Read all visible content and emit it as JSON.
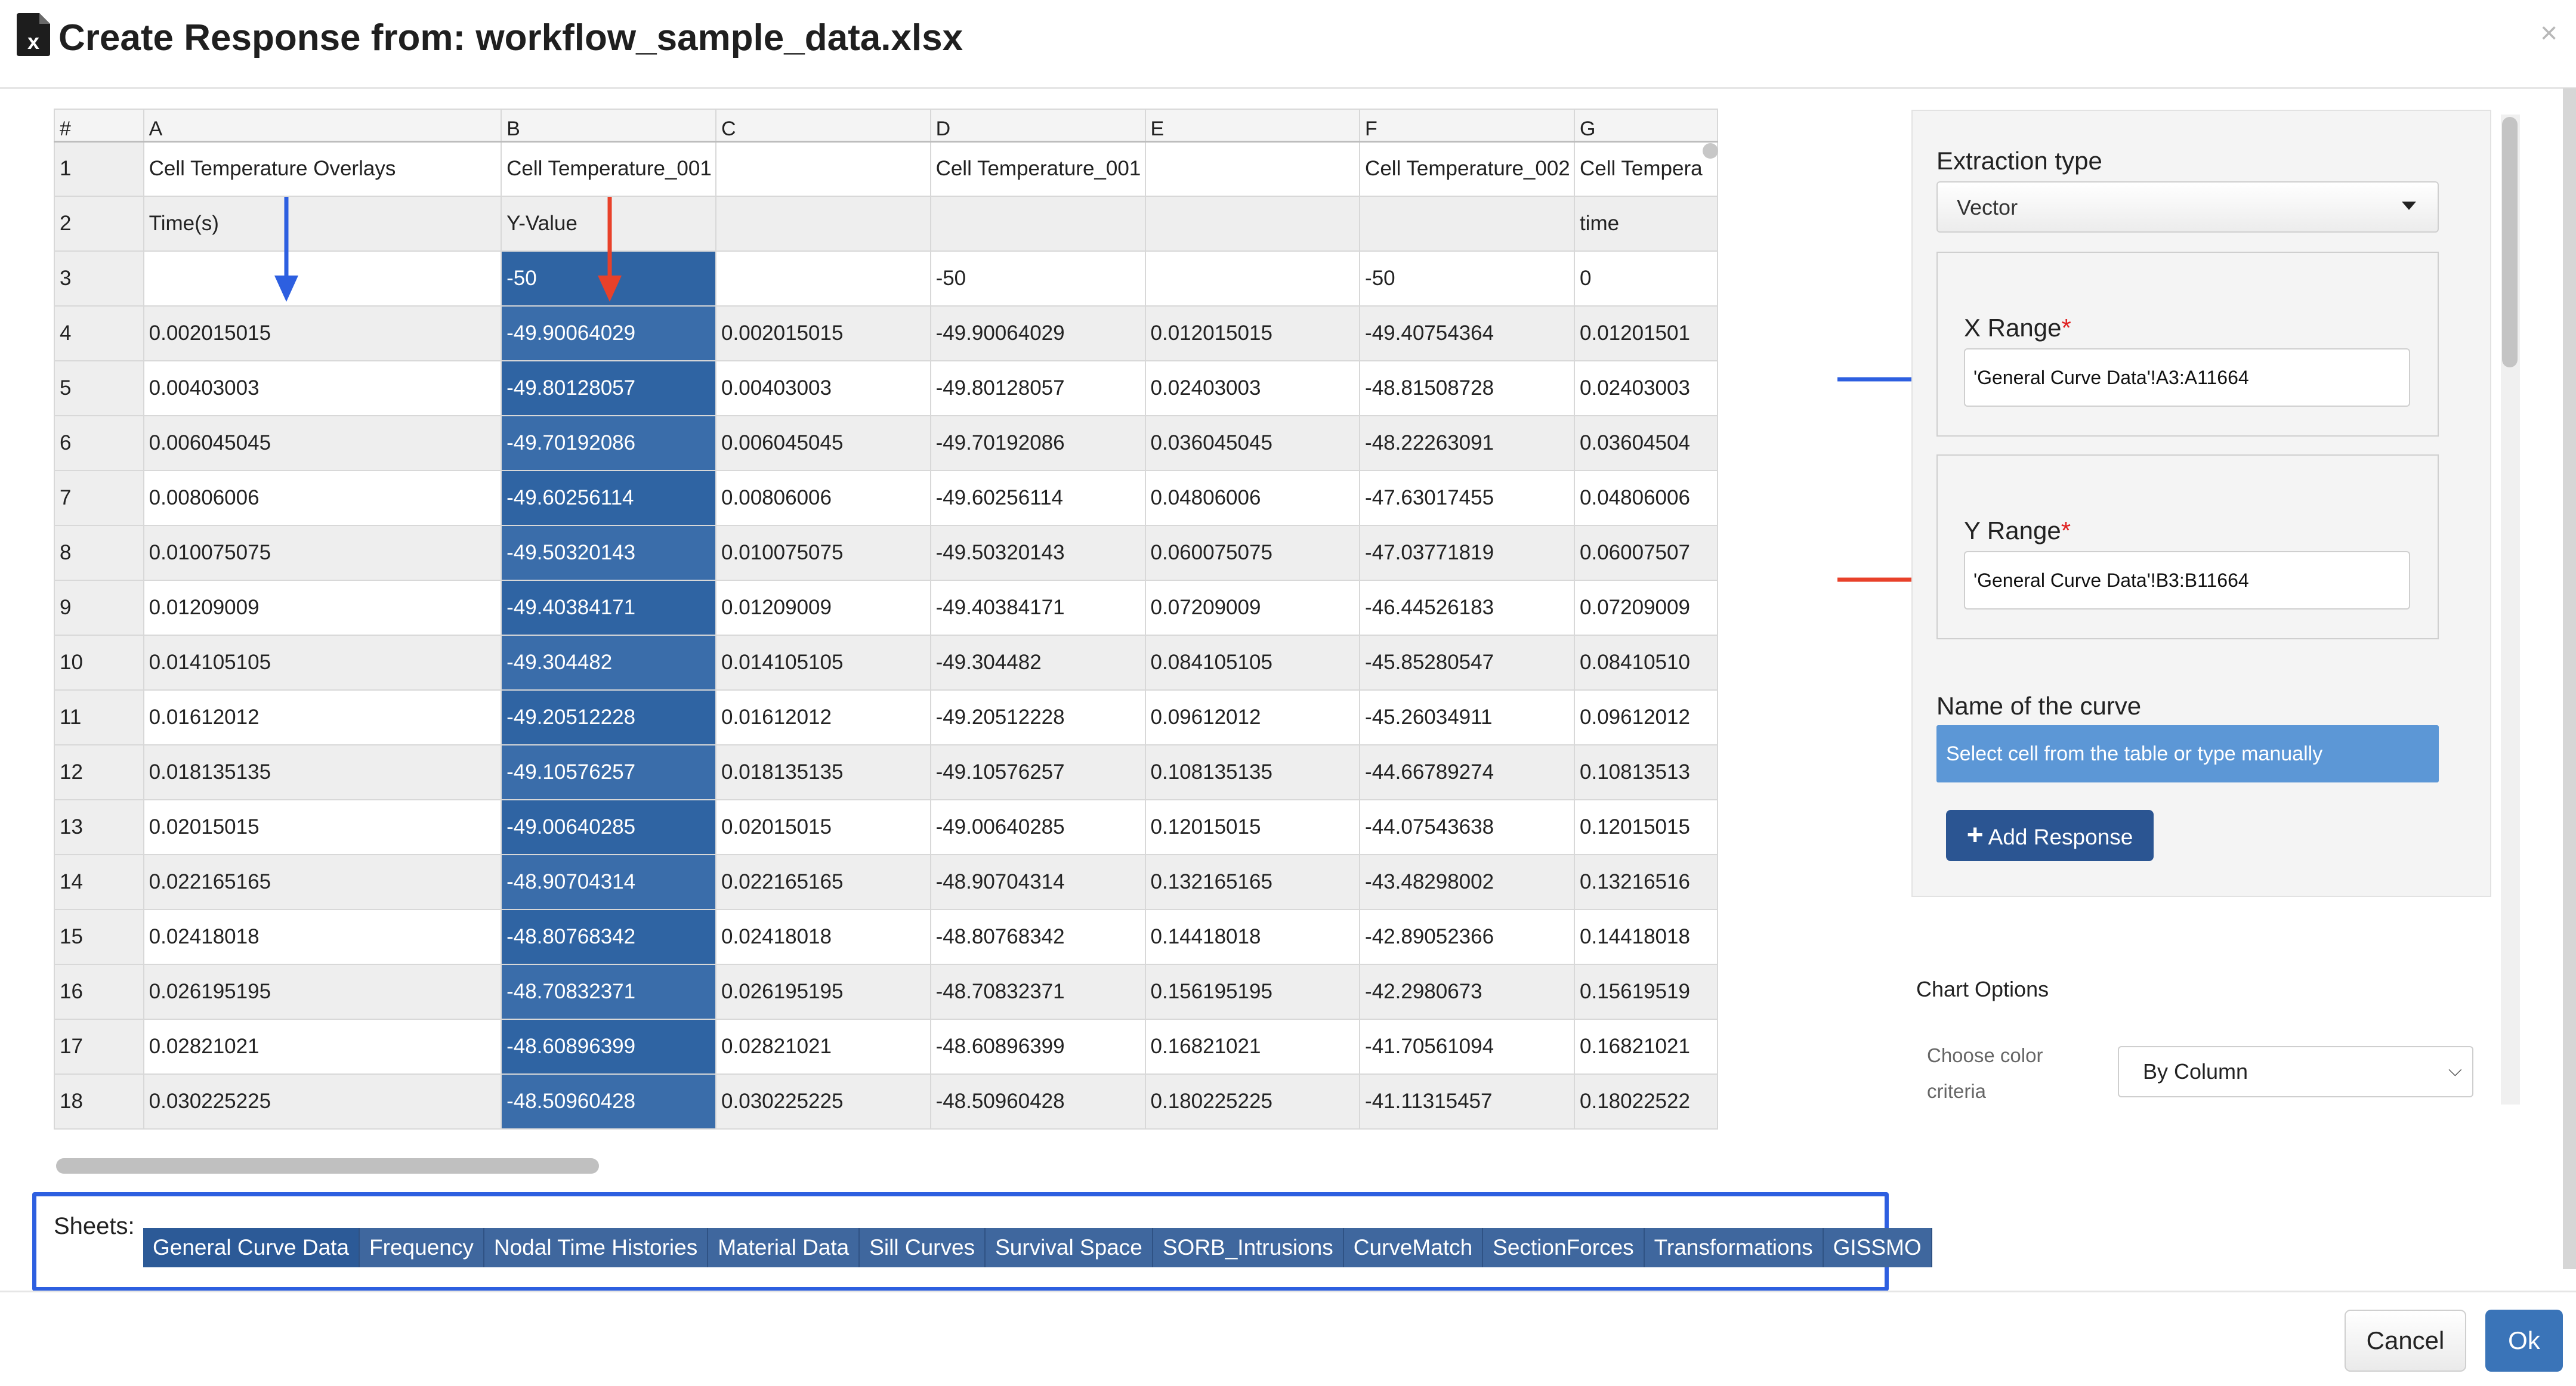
{
  "dialog": {
    "title": "Create Response from: workflow_sample_data.xlsx",
    "file_icon": "xlsx-file-icon",
    "close_icon": "close-icon",
    "close_glyph": "×"
  },
  "spreadsheet": {
    "columns": [
      "#",
      "A",
      "B",
      "C",
      "D",
      "E",
      "F",
      "G"
    ],
    "selected_column": "B",
    "rows": [
      [
        "1",
        "Cell Temperature Overlays",
        "Cell Temperature_001",
        "",
        "Cell Temperature_001",
        "",
        "Cell Temperature_002",
        "Cell Tempera"
      ],
      [
        "2",
        "Time(s)",
        "Y-Value",
        "",
        "",
        "",
        "",
        "time"
      ],
      [
        "3",
        "",
        "-50",
        "",
        "-50",
        "",
        "-50",
        "0"
      ],
      [
        "4",
        "0.002015015",
        "-49.90064029",
        "0.002015015",
        "-49.90064029",
        "0.012015015",
        "-49.40754364",
        "0.01201501"
      ],
      [
        "5",
        "0.00403003",
        "-49.80128057",
        "0.00403003",
        "-49.80128057",
        "0.02403003",
        "-48.81508728",
        "0.02403003"
      ],
      [
        "6",
        "0.006045045",
        "-49.70192086",
        "0.006045045",
        "-49.70192086",
        "0.036045045",
        "-48.22263091",
        "0.03604504"
      ],
      [
        "7",
        "0.00806006",
        "-49.60256114",
        "0.00806006",
        "-49.60256114",
        "0.04806006",
        "-47.63017455",
        "0.04806006"
      ],
      [
        "8",
        "0.010075075",
        "-49.50320143",
        "0.010075075",
        "-49.50320143",
        "0.060075075",
        "-47.03771819",
        "0.06007507"
      ],
      [
        "9",
        "0.01209009",
        "-49.40384171",
        "0.01209009",
        "-49.40384171",
        "0.07209009",
        "-46.44526183",
        "0.07209009"
      ],
      [
        "10",
        "0.014105105",
        "-49.304482",
        "0.014105105",
        "-49.304482",
        "0.084105105",
        "-45.85280547",
        "0.08410510"
      ],
      [
        "11",
        "0.01612012",
        "-49.20512228",
        "0.01612012",
        "-49.20512228",
        "0.09612012",
        "-45.26034911",
        "0.09612012"
      ],
      [
        "12",
        "0.018135135",
        "-49.10576257",
        "0.018135135",
        "-49.10576257",
        "0.108135135",
        "-44.66789274",
        "0.10813513"
      ],
      [
        "13",
        "0.02015015",
        "-49.00640285",
        "0.02015015",
        "-49.00640285",
        "0.12015015",
        "-44.07543638",
        "0.12015015"
      ],
      [
        "14",
        "0.022165165",
        "-48.90704314",
        "0.022165165",
        "-48.90704314",
        "0.132165165",
        "-43.48298002",
        "0.13216516"
      ],
      [
        "15",
        "0.02418018",
        "-48.80768342",
        "0.02418018",
        "-48.80768342",
        "0.14418018",
        "-42.89052366",
        "0.14418018"
      ],
      [
        "16",
        "0.026195195",
        "-48.70832371",
        "0.026195195",
        "-48.70832371",
        "0.156195195",
        "-42.2980673",
        "0.15619519"
      ],
      [
        "17",
        "0.02821021",
        "-48.60896399",
        "0.02821021",
        "-48.60896399",
        "0.16821021",
        "-41.70561094",
        "0.16821021"
      ],
      [
        "18",
        "0.030225225",
        "-48.50960428",
        "0.030225225",
        "-48.50960428",
        "0.180225225",
        "-41.11315457",
        "0.18022522"
      ]
    ]
  },
  "sheets": {
    "label": "Sheets:",
    "tabs": [
      "General Curve Data",
      "Frequency",
      "Nodal Time Histories",
      "Material Data",
      "Sill Curves",
      "Survival Space",
      "SORB_Intrusions",
      "CurveMatch",
      "SectionForces",
      "Transformations",
      "GISSMO"
    ],
    "active": "General Curve Data"
  },
  "panel": {
    "extraction_type_label": "Extraction type",
    "extraction_type_value": "Vector",
    "x_range_label": "X Range",
    "x_range_value": "'General Curve Data'!A3:A11664",
    "y_range_label": "Y Range",
    "y_range_value": "'General Curve Data'!B3:B11664",
    "required_mark": "*",
    "curve_name_label": "Name of the curve",
    "curve_name_placeholder": "Select cell from the table or type manually",
    "add_response_label": "Add Response",
    "add_icon_glyph": "+",
    "chart_options_title": "Chart Options",
    "color_criteria_label": "Choose color criteria",
    "color_criteria_value": "By Column",
    "chevron_glyph": "⌵"
  },
  "annotations": {
    "blue_color": "#2d5fe0",
    "red_color": "#e8412a"
  },
  "footer": {
    "cancel_label": "Cancel",
    "ok_label": "Ok"
  }
}
